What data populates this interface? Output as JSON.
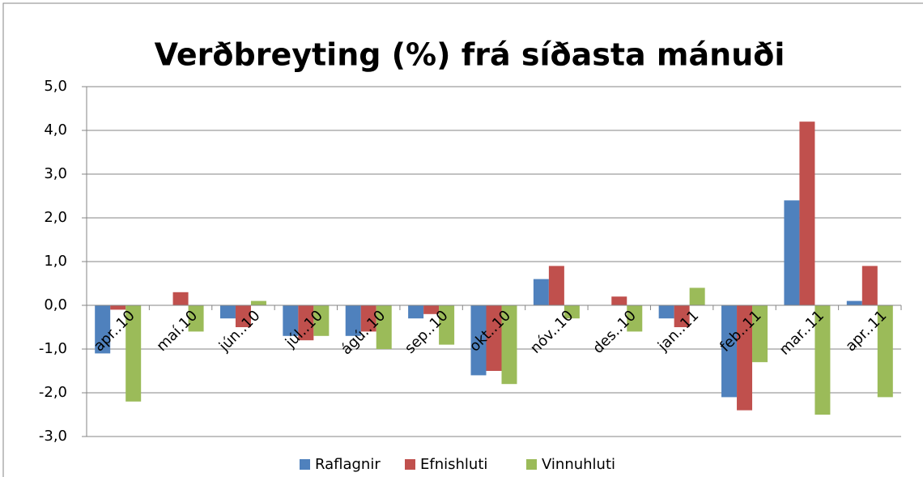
{
  "chart_data": {
    "type": "bar",
    "title": "Verðbreyting (%) frá síðasta mánuði",
    "categories": [
      "apr..10",
      "maí.10",
      "jún..10",
      "júl..10",
      "ágú..10",
      "sep..10",
      "okt..10",
      "nóv..10",
      "des..10",
      "jan..11",
      "feb..11",
      "mar..11",
      "apr..11"
    ],
    "series": [
      {
        "name": "Raflagnir",
        "color": "#4f81bd",
        "values": [
          -1.1,
          0,
          -0.3,
          -0.7,
          -0.7,
          -0.3,
          -1.6,
          0.6,
          0,
          -0.3,
          -2.1,
          2.4,
          0.1
        ]
      },
      {
        "name": "Efnishluti",
        "color": "#c0504d",
        "values": [
          -0.1,
          0.3,
          -0.5,
          -0.8,
          -0.6,
          -0.2,
          -1.5,
          0.9,
          0.2,
          -0.5,
          -2.4,
          4.2,
          0.9
        ]
      },
      {
        "name": "Vinnuhluti",
        "color": "#9bbb59",
        "values": [
          -2.2,
          -0.6,
          0.1,
          -0.7,
          -1.0,
          -0.9,
          -1.8,
          -0.3,
          -0.6,
          0.4,
          -1.3,
          -2.5,
          -2.1
        ]
      }
    ],
    "ylim": [
      -3,
      5
    ],
    "yticks": [
      {
        "value": -3,
        "label": "-3,0"
      },
      {
        "value": -2,
        "label": "-2,0"
      },
      {
        "value": -1,
        "label": "-1,0"
      },
      {
        "value": 0,
        "label": "0,0"
      },
      {
        "value": 1,
        "label": "1,0"
      },
      {
        "value": 2,
        "label": "2,0"
      },
      {
        "value": 3,
        "label": "3,0"
      },
      {
        "value": 4,
        "label": "4,0"
      },
      {
        "value": 5,
        "label": "5,0"
      }
    ],
    "grid": true,
    "legend": "bottom"
  }
}
